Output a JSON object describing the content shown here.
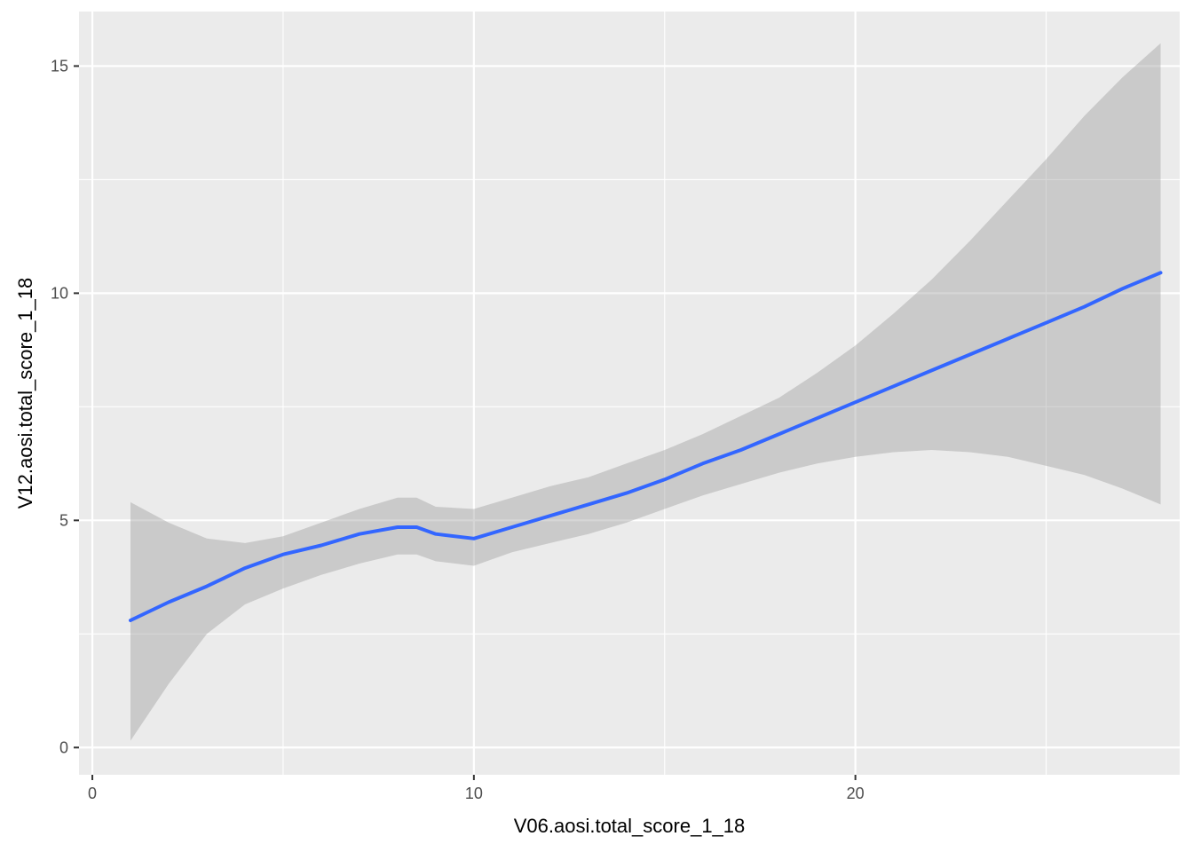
{
  "chart_data": {
    "type": "line",
    "title": "",
    "xlabel": "V06.aosi.total_score_1_18",
    "ylabel": "V12.aosi.total_score_1_18",
    "xlim": [
      -0.35,
      28.5
    ],
    "ylim": [
      -0.6,
      16.2
    ],
    "x_ticks": [
      0,
      10,
      20
    ],
    "y_ticks": [
      0,
      5,
      10,
      15
    ],
    "x_minor": [
      5,
      15,
      25
    ],
    "y_minor": [
      2.5,
      7.5,
      12.5
    ],
    "grid": true,
    "legend": "none",
    "colors": {
      "panel": "#ebebeb",
      "grid": "#ffffff",
      "line": "#3366ff",
      "ribbon": "#999999",
      "tick": "#333333"
    },
    "series": [
      {
        "x": [
          1,
          2,
          3,
          4,
          5,
          6,
          7,
          8,
          8.5,
          9,
          10,
          11,
          12,
          13,
          14,
          15,
          16,
          17,
          18,
          19,
          20,
          21,
          22,
          23,
          24,
          25,
          26,
          27,
          28
        ],
        "y": [
          2.8,
          3.2,
          3.55,
          3.95,
          4.25,
          4.45,
          4.7,
          4.85,
          4.85,
          4.7,
          4.6,
          4.85,
          5.1,
          5.35,
          5.6,
          5.9,
          6.25,
          6.55,
          6.9,
          7.25,
          7.6,
          7.95,
          8.3,
          8.65,
          9.0,
          9.35,
          9.7,
          10.1,
          10.45
        ],
        "lower": [
          0.15,
          1.4,
          2.5,
          3.15,
          3.5,
          3.8,
          4.05,
          4.25,
          4.25,
          4.1,
          4.0,
          4.3,
          4.5,
          4.7,
          4.95,
          5.25,
          5.55,
          5.8,
          6.05,
          6.25,
          6.4,
          6.5,
          6.55,
          6.5,
          6.4,
          6.2,
          6.0,
          5.7,
          5.35
        ],
        "upper": [
          5.4,
          4.95,
          4.6,
          4.5,
          4.65,
          4.95,
          5.25,
          5.5,
          5.5,
          5.3,
          5.25,
          5.5,
          5.75,
          5.95,
          6.25,
          6.55,
          6.9,
          7.3,
          7.7,
          8.25,
          8.85,
          9.55,
          10.3,
          11.15,
          12.05,
          12.95,
          13.9,
          14.75,
          15.5
        ]
      }
    ]
  }
}
